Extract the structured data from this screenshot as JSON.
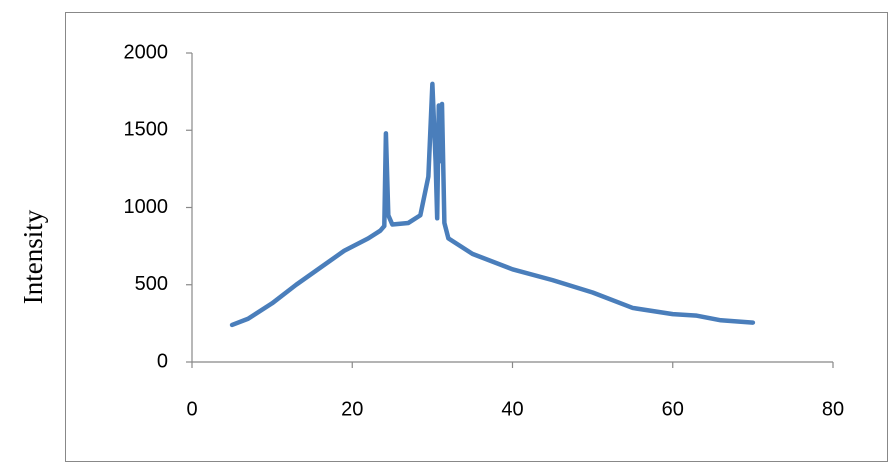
{
  "chart_data": {
    "type": "line",
    "ylabel": "Intensity",
    "x": [
      5,
      7,
      10,
      13,
      16,
      19,
      22,
      23.5,
      24,
      24.2,
      24.5,
      25,
      27,
      28.5,
      29.5,
      30,
      30.4,
      30.6,
      30.8,
      31,
      31.2,
      31.5,
      32,
      35,
      40,
      45,
      50,
      55,
      60,
      63,
      66,
      70
    ],
    "series": [
      {
        "color": "#4a7ebb",
        "values": [
          240,
          280,
          380,
          500,
          610,
          720,
          800,
          850,
          880,
          1480,
          950,
          890,
          900,
          950,
          1200,
          1800,
          1300,
          930,
          1660,
          1300,
          1670,
          900,
          800,
          700,
          600,
          530,
          450,
          350,
          310,
          300,
          270,
          255
        ]
      }
    ],
    "xlim": [
      0,
      80
    ],
    "xticks": [
      0,
      20,
      40,
      60,
      80
    ],
    "ylim": [
      0,
      2000
    ],
    "yticks": [
      0,
      500,
      1000,
      1500,
      2000
    ],
    "grid": false
  }
}
